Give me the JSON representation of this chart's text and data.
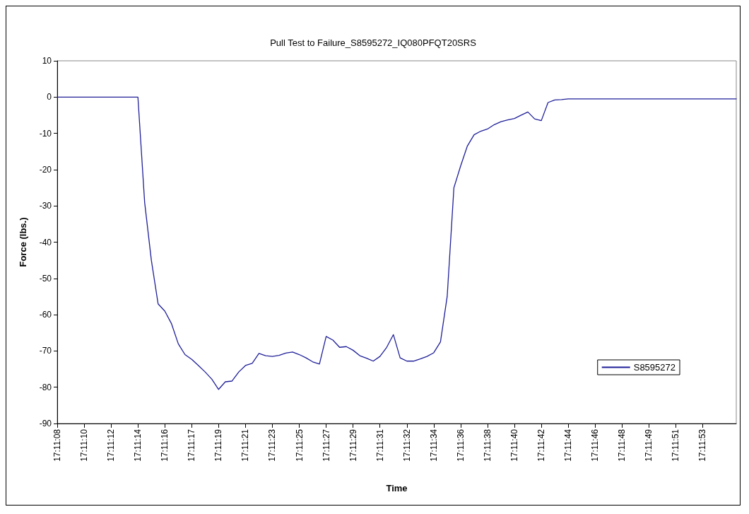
{
  "chart_data": {
    "type": "line",
    "title": "Pull Test to Failure_S8595272_IQ080PFQT20SRS",
    "xlabel": "Time",
    "ylabel": "Force (lbs.)",
    "categories": [
      "17:11:08",
      null,
      null,
      null,
      "17:11:10",
      null,
      null,
      null,
      "17:11:12",
      null,
      null,
      null,
      "17:11:14",
      null,
      null,
      null,
      "17:11:16",
      null,
      null,
      null,
      "17:11:17",
      null,
      null,
      null,
      "17:11:19",
      null,
      null,
      null,
      "17:11:21",
      null,
      null,
      null,
      "17:11:23",
      null,
      null,
      null,
      "17:11:25",
      null,
      null,
      null,
      "17:11:27",
      null,
      null,
      null,
      "17:11:29",
      null,
      null,
      null,
      "17:11:31",
      null,
      null,
      null,
      "17:11:32",
      null,
      null,
      null,
      "17:11:34",
      null,
      null,
      null,
      "17:11:36",
      null,
      null,
      null,
      "17:11:38",
      null,
      null,
      null,
      "17:11:40",
      null,
      null,
      null,
      "17:11:42",
      null,
      null,
      null,
      "17:11:44",
      null,
      null,
      null,
      "17:11:46",
      null,
      null,
      null,
      "17:11:48",
      null,
      null,
      null,
      "17:11:49",
      null,
      null,
      null,
      "17:11:51",
      null,
      null,
      null,
      "17:11:53",
      null,
      null,
      null,
      null,
      null
    ],
    "series": [
      {
        "name": "S8595272",
        "color": "#1f1f99",
        "values": [
          0,
          0,
          0,
          0,
          0,
          0,
          0,
          0,
          0,
          0,
          0,
          0,
          0,
          -29,
          -45,
          -57,
          -59,
          -62.5,
          -68,
          -71,
          -72.3,
          -74,
          -75.8,
          -77.8,
          -80.6,
          -78.5,
          -78.3,
          -75.8,
          -74,
          -73.4,
          -70.7,
          -71.3,
          -71.5,
          -71.2,
          -70.6,
          -70.3,
          -71,
          -71.9,
          -73,
          -73.6,
          -66,
          -67,
          -69,
          -68.8,
          -69.8,
          -71.3,
          -72,
          -72.8,
          -71.5,
          -69,
          -65.5,
          -71.9,
          -72.8,
          -72.8,
          -72.2,
          -71.5,
          -70.5,
          -67.5,
          -55,
          -25,
          -19,
          -13.5,
          -10.4,
          -9.4,
          -8.8,
          -7.6,
          -6.8,
          -6.3,
          -5.9,
          -5,
          -4.1,
          -6,
          -6.5,
          -1.5,
          -0.8,
          -0.7,
          -0.5,
          -0.5,
          -0.5,
          -0.5,
          -0.5,
          -0.5,
          -0.5,
          -0.5,
          -0.5,
          -0.5,
          -0.5,
          -0.5,
          -0.5,
          -0.5,
          -0.5,
          -0.5,
          -0.5,
          -0.5,
          -0.5,
          -0.5,
          -0.5,
          -0.5,
          -0.5,
          -0.5,
          -0.5,
          -0.5
        ]
      }
    ],
    "ylim": [
      -90,
      10
    ],
    "yticks": [
      -90,
      -80,
      -70,
      -60,
      -50,
      -40,
      -30,
      -20,
      -10,
      0,
      10
    ],
    "grid": false,
    "legend": "right",
    "marker": "none",
    "line_style": "solid"
  }
}
